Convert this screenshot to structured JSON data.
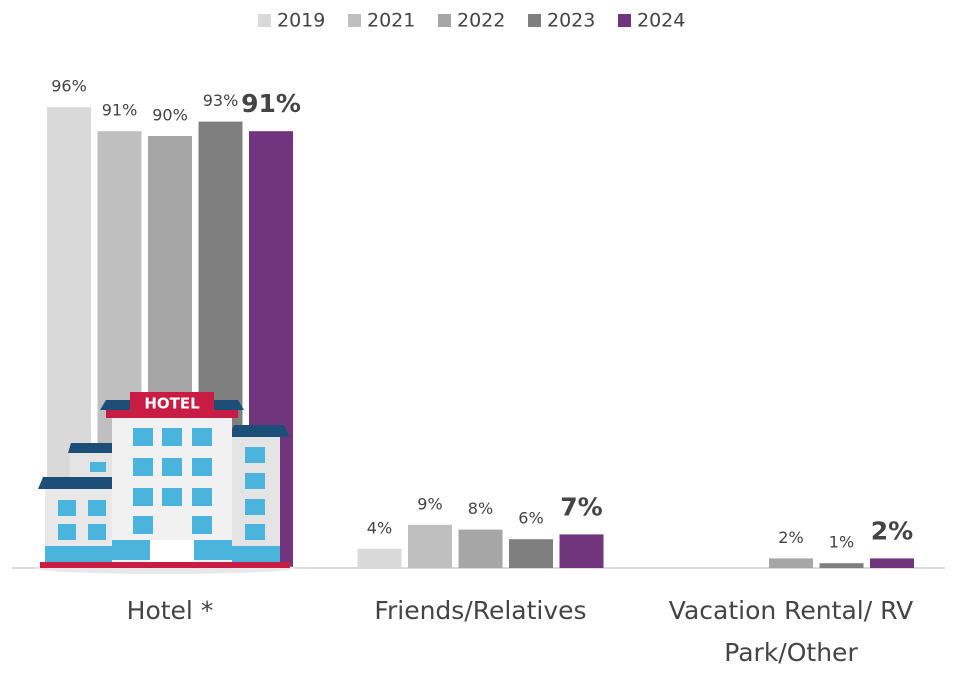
{
  "chart_data": {
    "type": "bar",
    "categories": [
      "Hotel *",
      "Friends/Relatives",
      "Vacation Rental/ RV Park/Other"
    ],
    "series": [
      {
        "name": "2019",
        "color": "#d9d9d9",
        "values": [
          96,
          4,
          null
        ],
        "value_labels": [
          "96%",
          "4%",
          null
        ]
      },
      {
        "name": "2021",
        "color": "#bfbfbf",
        "values": [
          91,
          9,
          null
        ],
        "value_labels": [
          "91%",
          "9%",
          null
        ]
      },
      {
        "name": "2022",
        "color": "#a6a6a6",
        "values": [
          90,
          8,
          2
        ],
        "value_labels": [
          "90%",
          "8%",
          "2%"
        ]
      },
      {
        "name": "2023",
        "color": "#7f7f7f",
        "values": [
          93,
          6,
          1
        ],
        "value_labels": [
          "93%",
          "6%",
          "1%"
        ]
      },
      {
        "name": "2024",
        "color": "#70357d",
        "values": [
          91,
          7,
          2
        ],
        "value_labels": [
          "91%",
          "7%",
          "2%"
        ]
      }
    ],
    "legend": "top"
  },
  "illustration": {
    "sign": "HOTEL"
  }
}
